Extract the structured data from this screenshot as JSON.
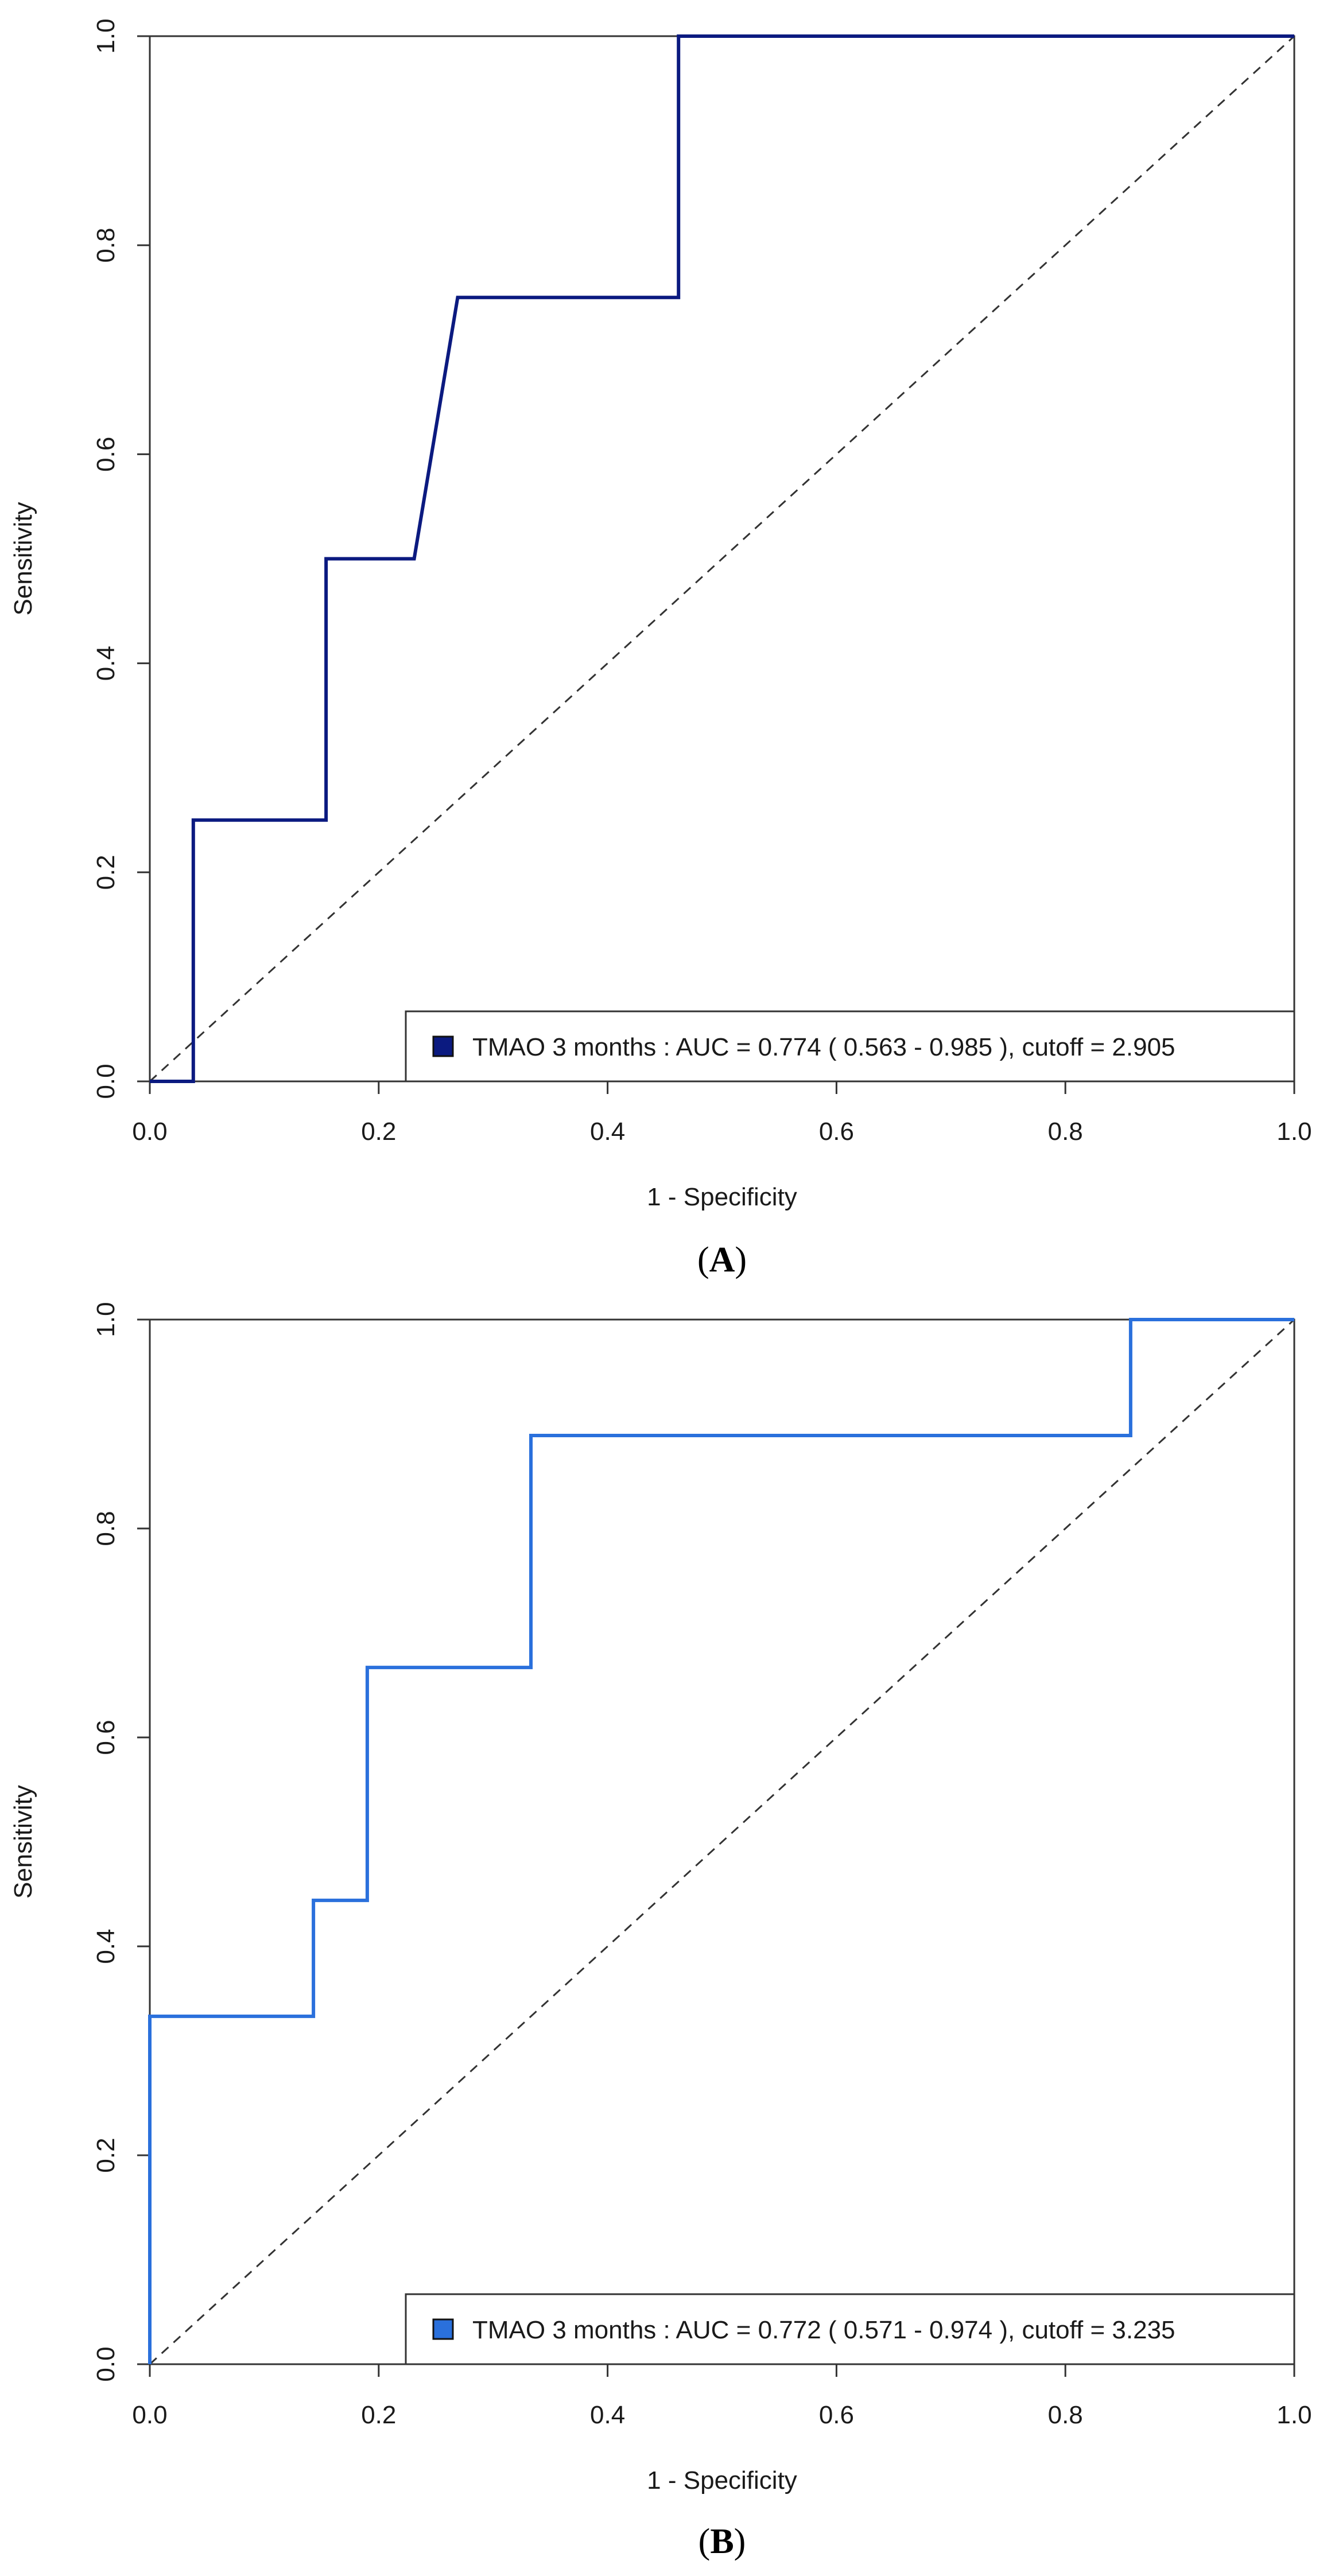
{
  "chart_data": [
    {
      "type": "line",
      "panel_label": "A",
      "xlabel": "1 - Specificity",
      "ylabel": "Sensitivity",
      "xlim": [
        0,
        1
      ],
      "ylim": [
        0,
        1
      ],
      "x_ticks": [
        "0.0",
        "0.2",
        "0.4",
        "0.6",
        "0.8",
        "1.0"
      ],
      "y_ticks": [
        "0.0",
        "0.2",
        "0.4",
        "0.6",
        "0.8",
        "1.0"
      ],
      "legend_position": "bottom-right",
      "reference_line": {
        "style": "dashed",
        "from": [
          0,
          0
        ],
        "to": [
          1,
          1
        ]
      },
      "series": [
        {
          "name": "TMAO 3 months",
          "legend_label": "TMAO 3 months : AUC = 0.774  ( 0.563 - 0.985 ),  cutoff = 2.905",
          "color": "#0b1a80",
          "auc": 0.774,
          "ci": [
            0.563,
            0.985
          ],
          "cutoff": 2.905,
          "x": [
            0,
            0.038,
            0.038,
            0.154,
            0.154,
            0.231,
            0.269,
            0.462,
            0.462,
            1.0
          ],
          "y": [
            0,
            0,
            0.25,
            0.25,
            0.5,
            0.5,
            0.75,
            0.75,
            1.0,
            1.0
          ]
        }
      ]
    },
    {
      "type": "line",
      "panel_label": "B",
      "xlabel": "1 - Specificity",
      "ylabel": "Sensitivity",
      "xlim": [
        0,
        1
      ],
      "ylim": [
        0,
        1
      ],
      "x_ticks": [
        "0.0",
        "0.2",
        "0.4",
        "0.6",
        "0.8",
        "1.0"
      ],
      "y_ticks": [
        "0.0",
        "0.2",
        "0.4",
        "0.6",
        "0.8",
        "1.0"
      ],
      "legend_position": "bottom-right",
      "reference_line": {
        "style": "dashed",
        "from": [
          0,
          0
        ],
        "to": [
          1,
          1
        ]
      },
      "series": [
        {
          "name": "TMAO 3 months",
          "legend_label": "TMAO 3 months : AUC = 0.772  ( 0.571 - 0.974 ),  cutoff = 3.235",
          "color": "#2a70dc",
          "auc": 0.772,
          "ci": [
            0.571,
            0.974
          ],
          "cutoff": 3.235,
          "x": [
            0,
            0,
            0.143,
            0.143,
            0.19,
            0.19,
            0.333,
            0.333,
            0.857,
            0.857,
            1.0
          ],
          "y": [
            0,
            0.333,
            0.333,
            0.444,
            0.444,
            0.667,
            0.667,
            0.889,
            0.889,
            1.0,
            1.0
          ]
        }
      ]
    }
  ]
}
